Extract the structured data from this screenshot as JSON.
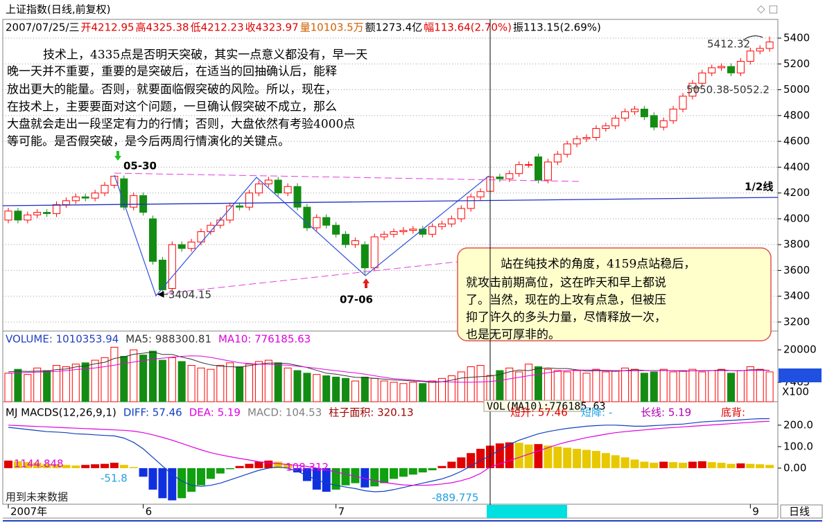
{
  "header": {
    "title": "上证指数(日线,前复权)",
    "quote": [
      {
        "text": "2007/07/25/三",
        "color": "#000000"
      },
      {
        "text": "开4212.95",
        "color": "#e00000"
      },
      {
        "text": "高4325.38",
        "color": "#e00000"
      },
      {
        "text": "低4212.23",
        "color": "#e00000"
      },
      {
        "text": "收4323.97",
        "color": "#e00000"
      },
      {
        "text": "量10103.5万",
        "color": "#d06000"
      },
      {
        "text": "额1273.4亿",
        "color": "#000000"
      },
      {
        "text": "幅113.64(2.70%)",
        "color": "#e00000"
      },
      {
        "text": "振113.15(2.69%)",
        "color": "#000000"
      }
    ],
    "period": "日线"
  },
  "chart_data": [
    {
      "type": "candlestick",
      "categories": [
        "2007年",
        null,
        null,
        null,
        null,
        null,
        null,
        null,
        null,
        null,
        null,
        null,
        null,
        null,
        "6",
        null,
        null,
        null,
        null,
        null,
        null,
        null,
        null,
        null,
        null,
        null,
        null,
        null,
        null,
        null,
        null,
        null,
        null,
        null,
        "7",
        null,
        null,
        null,
        null,
        null,
        null,
        null,
        null,
        null,
        null,
        null,
        null,
        null,
        null,
        null,
        "2007/07/25/三",
        null,
        null,
        null,
        null,
        null,
        null,
        null,
        null,
        null,
        null,
        null,
        null,
        null,
        null,
        null,
        null,
        null,
        null,
        null,
        null,
        null,
        null,
        null,
        null,
        null,
        null,
        "9",
        null,
        null
      ],
      "open": [
        3990,
        4060,
        3990,
        4030,
        4050,
        4040,
        4110,
        4140,
        4170,
        4160,
        4200,
        4260,
        4310,
        4090,
        4180,
        4000,
        3680,
        3460,
        3800,
        3770,
        3820,
        3900,
        3950,
        3990,
        4100,
        4090,
        4200,
        4270,
        4300,
        4200,
        4250,
        4090,
        3930,
        4010,
        3950,
        3880,
        3800,
        3800,
        3620,
        3860,
        3880,
        3900,
        3910,
        3920,
        3880,
        3940,
        3960,
        4000,
        4080,
        4170,
        4212.95,
        4324,
        4310,
        4350,
        4420,
        4480,
        4300,
        4440,
        4500,
        4580,
        4620,
        4630,
        4700,
        4720,
        4780,
        4830,
        4850,
        4800,
        4710,
        4760,
        4850,
        4950,
        5050,
        5130,
        5170,
        5180,
        5130,
        5220,
        5300,
        5320
      ],
      "high": [
        4085,
        4085,
        4055,
        4075,
        4075,
        4135,
        4165,
        4195,
        4195,
        4225,
        4285,
        4335,
        4335,
        4205,
        4205,
        4025,
        3705,
        3825,
        3825,
        3845,
        3925,
        3975,
        4015,
        4125,
        4125,
        4225,
        4295,
        4325,
        4325,
        4275,
        4275,
        4115,
        4035,
        4035,
        3975,
        3905,
        3855,
        3825,
        3885,
        3905,
        3925,
        3935,
        3945,
        3945,
        3965,
        3985,
        4025,
        4105,
        4195,
        4235,
        4325.38,
        4349,
        4375,
        4445,
        4445,
        4505,
        4465,
        4525,
        4605,
        4645,
        4655,
        4725,
        4745,
        4805,
        4855,
        4875,
        4875,
        4825,
        4785,
        4875,
        4975,
        5075,
        5155,
        5195,
        5205,
        5205,
        5245,
        5325,
        5345,
        5412.32
      ],
      "low": [
        3965,
        3965,
        3965,
        4005,
        4015,
        4015,
        4085,
        4115,
        4135,
        4135,
        4175,
        4235,
        4065,
        4065,
        4025,
        3645,
        3404.15,
        3435,
        3745,
        3745,
        3795,
        3875,
        3925,
        3965,
        4065,
        4065,
        4175,
        4245,
        4175,
        4175,
        4065,
        3905,
        3905,
        3925,
        3855,
        3775,
        3775,
        3563,
        3595,
        3835,
        3855,
        3875,
        3885,
        3855,
        3855,
        3915,
        3935,
        3975,
        4055,
        4145,
        4212.23,
        4285,
        4285,
        4325,
        4395,
        4275,
        4275,
        4415,
        4475,
        4555,
        4595,
        4605,
        4675,
        4695,
        4755,
        4805,
        4765,
        4685,
        4685,
        4735,
        4825,
        4925,
        5025,
        5105,
        5145,
        5105,
        5105,
        5195,
        5275,
        5295
      ],
      "close": [
        4060,
        3990,
        4030,
        4050,
        4040,
        4110,
        4140,
        4170,
        4160,
        4200,
        4260,
        4330,
        4090,
        4180,
        4050,
        3670,
        3450,
        3800,
        3770,
        3820,
        3900,
        3950,
        3990,
        4100,
        4090,
        4200,
        4270,
        4300,
        4200,
        4250,
        4090,
        3930,
        4010,
        3950,
        3880,
        3800,
        3830,
        3620,
        3860,
        3880,
        3900,
        3910,
        3920,
        3880,
        3940,
        3960,
        4000,
        4080,
        4170,
        4210,
        4323.97,
        4310,
        4350,
        4420,
        4420,
        4300,
        4440,
        4500,
        4580,
        4620,
        4630,
        4700,
        4720,
        4780,
        4830,
        4850,
        4790,
        4710,
        4760,
        4850,
        4950,
        5050,
        5130,
        5170,
        5180,
        5130,
        5220,
        5300,
        5320,
        5370
      ],
      "up_color": "#ff0000",
      "down_color": "#148c14",
      "ylim": [
        3130,
        5545
      ],
      "yticks": [
        3200,
        3400,
        3600,
        3800,
        4000,
        4200,
        4400,
        4600,
        4800,
        5000,
        5200,
        5400
      ],
      "grid": true,
      "notes": [
        "技术上，4335点是否明天突破，其实一点意义都没有，早一天",
        "晚一天并不重要，重要的是突破后，在适当的回抽确认后，能释",
        "放出更大的能量。否则，就要面临假突破的风险。所以，现在，",
        "在技术上，主要要面对这个问题，一旦确认假突破不成立，那么",
        "大盘就会走出一段坚定有力的行情；否则，大盘依然有考验4000点",
        "等可能。是否假突破，是今后两周行情演化的关键点。"
      ],
      "callout": [
        "站在纯技术的角度，4159点站稳后，",
        "就攻击前期高位，这在昨天和早上都说",
        "了。当然，现在的上攻有点急，但被压",
        "抑了许久的多头力量，尽情释放一次，",
        "也是无可厚非的。"
      ],
      "labels": [
        "05-30",
        "07-06",
        "3404.15",
        "5412.32",
        "5050.38-5052.2",
        "1/2线"
      ]
    },
    {
      "type": "volume",
      "title": "VOLUME: 1010353.94",
      "values": [
        11000,
        12500,
        10500,
        13000,
        12000,
        14000,
        13500,
        14500,
        15000,
        16000,
        17000,
        21000,
        17500,
        20000,
        18000,
        19500,
        16000,
        17000,
        15500,
        14000,
        13000,
        12500,
        14000,
        15000,
        13500,
        14500,
        15500,
        16000,
        15000,
        13000,
        12000,
        11000,
        10500,
        10000,
        9500,
        9000,
        8000,
        9500,
        9000,
        8000,
        7500,
        7000,
        7500,
        7000,
        8000,
        9000,
        10000,
        11500,
        13500,
        14000,
        10103.5,
        12000,
        13000,
        11500,
        14500,
        13500,
        12500,
        12000,
        11500,
        12000,
        11000,
        12500,
        11500,
        12000,
        13000,
        12500,
        11000,
        11500,
        12500,
        11500,
        12000,
        12500,
        11500,
        12000,
        12500,
        11000,
        12000,
        13500,
        12500,
        11500
      ],
      "series": [
        {
          "name": "MA5: 988300.81",
          "color": "#333333",
          "values": [
            11500,
            11800,
            11700,
            11800,
            11800,
            12400,
            12600,
            13400,
            13800,
            14600,
            15200,
            16700,
            17300,
            18300,
            18700,
            19200,
            18200,
            18200,
            17200,
            16400,
            15100,
            14200,
            13700,
            13500,
            13300,
            13900,
            14500,
            14900,
            14900,
            14700,
            14000,
            13200,
            12100,
            11000,
            10600,
            10000,
            9400,
            9300,
            9000,
            8700,
            8400,
            8200,
            8000,
            7800,
            7400,
            7700,
            8300,
            9100,
            9400,
            9700,
            9883,
            10500,
            11500,
            12200,
            12000,
            12800,
            13000,
            12800,
            12800,
            12300,
            11800,
            12000,
            11900,
            11700,
            12000,
            12300,
            12100,
            12000,
            12100,
            12000,
            11700,
            11900,
            12000,
            12000,
            12300,
            12000,
            11900,
            12300,
            12300,
            12100
          ]
        },
        {
          "name": "MA10: 776185.63",
          "color": "#e000e0",
          "values": [
            11000,
            11200,
            11300,
            11400,
            11500,
            11700,
            12000,
            12400,
            12700,
            13000,
            13500,
            14100,
            14700,
            15300,
            15800,
            16400,
            16800,
            17200,
            17500,
            17700,
            17600,
            17100,
            16400,
            15700,
            15000,
            14700,
            14500,
            14400,
            14200,
            14100,
            13700,
            13300,
            12900,
            12400,
            12000,
            11500,
            11100,
            10600,
            10000,
            9400,
            8900,
            8600,
            8300,
            8000,
            7800,
            7700,
            7600,
            7500,
            7500,
            7600,
            7762,
            8200,
            8800,
            9400,
            10000,
            10600,
            11200,
            11700,
            12000,
            12200,
            12200,
            12200,
            12100,
            12000,
            11900,
            11900,
            12000,
            12000,
            12000,
            12000,
            11900,
            11900,
            11900,
            12000,
            12000,
            12000,
            12000,
            12100,
            12100,
            12100
          ]
        }
      ],
      "ylim": [
        0,
        26700
      ],
      "yticks": [
        20000,
        7465
      ],
      "unit": "X100"
    },
    {
      "type": "macd",
      "title": "MJ  MACDS(12,26,9,1)",
      "histogram": {
        "name": "MACD: 104.53",
        "values": [
          35,
          32,
          28,
          25,
          20,
          18,
          15,
          12,
          15,
          18,
          20,
          25,
          15,
          5,
          -40,
          -100,
          -140,
          -150,
          -140,
          -110,
          -80,
          -50,
          -25,
          -5,
          10,
          20,
          30,
          35,
          30,
          20,
          -20,
          -60,
          -100,
          -110,
          -100,
          -80,
          -70,
          -90,
          -85,
          -70,
          -50,
          -40,
          -30,
          -20,
          -10,
          10,
          30,
          50,
          70,
          90,
          104.53,
          115,
          120,
          118,
          110,
          112,
          105,
          100,
          95,
          90,
          85,
          80,
          70,
          60,
          50,
          40,
          30,
          25,
          30,
          28,
          25,
          30,
          32,
          28,
          25,
          20,
          22,
          20,
          18,
          15
        ]
      },
      "bar_colors": {
        "rising_positive": "#e00000",
        "falling_positive": "#e8c800",
        "falling_negative": "#1030e0",
        "rising_negative": "#10a010"
      },
      "series": [
        {
          "name": "DIFF: 57.46",
          "color": "#1040c0",
          "values": [
            190,
            185,
            180,
            175,
            170,
            168,
            165,
            160,
            158,
            155,
            152,
            150,
            140,
            120,
            90,
            50,
            10,
            -30,
            -60,
            -80,
            -85,
            -80,
            -70,
            -55,
            -40,
            -25,
            -10,
            0,
            5,
            0,
            -15,
            -35,
            -55,
            -70,
            -80,
            -88,
            -95,
            -105,
            -110,
            -108,
            -100,
            -90,
            -80,
            -70,
            -60,
            -50,
            -35,
            -15,
            10,
            35,
            57.46,
            85,
            110,
            130,
            145,
            160,
            170,
            178,
            185,
            190,
            195,
            198,
            200,
            200,
            198,
            195,
            195,
            198,
            200,
            203,
            205,
            210,
            215,
            218,
            220,
            222,
            225,
            228,
            230,
            230
          ]
        },
        {
          "name": "DEA: 5.19",
          "color": "#e000e0",
          "values": [
            200,
            198,
            196,
            194,
            192,
            190,
            188,
            186,
            184,
            182,
            180,
            178,
            176,
            172,
            165,
            155,
            143,
            130,
            115,
            100,
            85,
            72,
            62,
            53,
            45,
            38,
            30,
            25,
            21,
            17,
            12,
            8,
            0,
            -8,
            -18,
            -28,
            -38,
            -48,
            -58,
            -66,
            -73,
            -78,
            -80,
            -80,
            -78,
            -74,
            -68,
            -58,
            -45,
            -25,
            5.19,
            20,
            35,
            50,
            65,
            80,
            95,
            110,
            122,
            132,
            142,
            150,
            158,
            165,
            170,
            174,
            178,
            182,
            186,
            189,
            192,
            195,
            198,
            201,
            204,
            207,
            210,
            213,
            216,
            218
          ]
        }
      ],
      "extra_legend": "柱子面积: 320.13",
      "ylim": [
        -168,
        293
      ],
      "yticks": [
        {
          "value": 200,
          "label": "200.0"
        },
        {
          "value": 100,
          "label": "100.0"
        },
        {
          "value": 0,
          "label": "0.00"
        }
      ],
      "annotations": [
        "1144.848",
        "-51.8",
        "108.312",
        "-889.775",
        "用到未来数据",
        "VOL(MA10):776185.63",
        "短升: 57.46",
        "短降: -",
        "长线: 5.19",
        "底背:"
      ]
    }
  ]
}
